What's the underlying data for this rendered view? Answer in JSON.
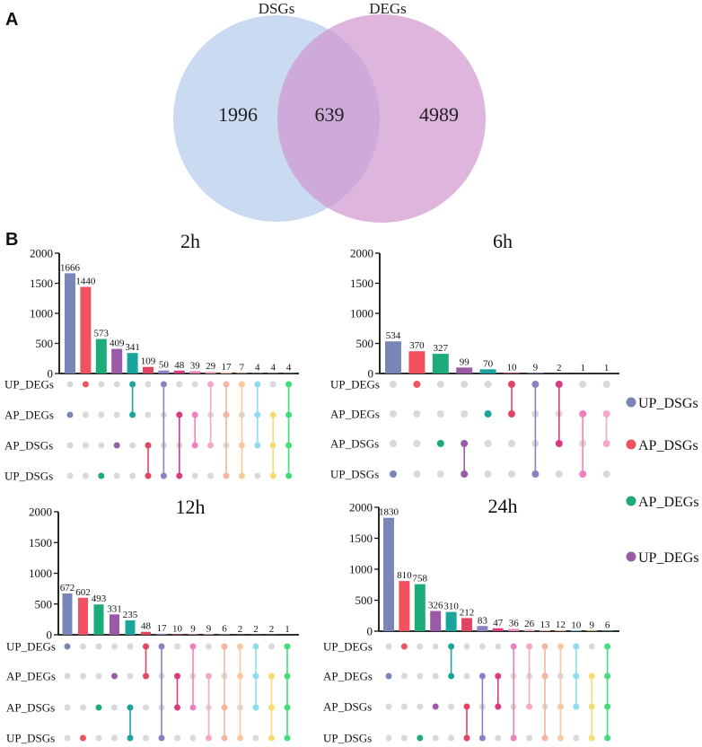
{
  "panel_labels": {
    "a": "A",
    "b": "B"
  },
  "bar_colors": [
    "#7b86b8",
    "#f25260",
    "#1dab7c",
    "#9a5aa6",
    "#1aa59c",
    "#e04563",
    "#8b80c2",
    "#d93b7f",
    "#ef80be",
    "#f5a8c6",
    "#f7b49e",
    "#f8c99c",
    "#90dcef",
    "#f5dc70",
    "#40df7c"
  ],
  "dot_inactive_color": "#d9d9d9",
  "legend": [
    {
      "label": "UP_DSGs",
      "color": "#7b86b8"
    },
    {
      "label": "AP_DSGs",
      "color": "#f25260"
    },
    {
      "label": "AP_DEGs",
      "color": "#1dab7c"
    },
    {
      "label": "UP_DEGs",
      "color": "#9a5aa6"
    }
  ],
  "chart_data": [
    {
      "type": "venn",
      "sets": [
        "DSGs",
        "DEGs"
      ],
      "counts": {
        "DSGs_only": 1996,
        "both": 639,
        "DEGs_only": 4989
      },
      "colors": [
        "#cadbf1",
        "#cf96cf"
      ]
    },
    {
      "type": "bar",
      "title": "2h",
      "sets": [
        "UP_DEGs",
        "AP_DEGs",
        "AP_DSGs",
        "UP_DSGs"
      ],
      "values": [
        1666,
        1440,
        573,
        409,
        341,
        109,
        50,
        48,
        39,
        29,
        17,
        7,
        4,
        4,
        4
      ],
      "combinations": [
        [
          1
        ],
        [
          0
        ],
        [
          3
        ],
        [
          2
        ],
        [
          0,
          1
        ],
        [
          2,
          3
        ],
        [
          0,
          3
        ],
        [
          1,
          3
        ],
        [
          1,
          2
        ],
        [
          0,
          2
        ],
        [
          0,
          1,
          3
        ],
        [
          0,
          2,
          3
        ],
        [
          0,
          1,
          2
        ],
        [
          1,
          2,
          3
        ],
        [
          0,
          1,
          2,
          3
        ]
      ],
      "ylim": [
        0,
        2000
      ],
      "yticks": [
        0,
        500,
        1000,
        1500,
        2000
      ]
    },
    {
      "type": "bar",
      "title": "6h",
      "sets": [
        "UP_DEGs",
        "AP_DEGs",
        "AP_DSGs",
        "UP_DSGs"
      ],
      "values": [
        534,
        370,
        327,
        99,
        70,
        10,
        9,
        2,
        1,
        1
      ],
      "combinations": [
        [
          3
        ],
        [
          0
        ],
        [
          2
        ],
        [
          2,
          3
        ],
        [
          1
        ],
        [
          0,
          1
        ],
        [
          0,
          3
        ],
        [
          0,
          2
        ],
        [
          1,
          3
        ],
        [
          1,
          2
        ]
      ],
      "ylim": [
        0,
        2000
      ],
      "yticks": [
        0,
        500,
        1000,
        1500,
        2000
      ]
    },
    {
      "type": "bar",
      "title": "12h",
      "sets": [
        "UP_DEGs",
        "AP_DEGs",
        "AP_DSGs",
        "UP_DSGs"
      ],
      "values": [
        672,
        602,
        493,
        331,
        235,
        48,
        17,
        10,
        9,
        9,
        6,
        2,
        2,
        2,
        1
      ],
      "combinations": [
        [
          0
        ],
        [
          3
        ],
        [
          2
        ],
        [
          1
        ],
        [
          2,
          3
        ],
        [
          0,
          1
        ],
        [
          0,
          3
        ],
        [
          1,
          2
        ],
        [
          0,
          2
        ],
        [
          1,
          3
        ],
        [
          0,
          2,
          3
        ],
        [
          0,
          1,
          3
        ],
        [
          0,
          1,
          2
        ],
        [
          1,
          2,
          3
        ],
        [
          0,
          1,
          2,
          3
        ]
      ],
      "ylim": [
        0,
        2000
      ],
      "yticks": [
        0,
        500,
        1000,
        1500,
        2000
      ]
    },
    {
      "type": "bar",
      "title": "24h",
      "sets": [
        "UP_DEGs",
        "AP_DEGs",
        "AP_DSGs",
        "UP_DSGs"
      ],
      "values": [
        1830,
        810,
        758,
        326,
        310,
        212,
        83,
        47,
        36,
        26,
        13,
        12,
        10,
        9,
        6
      ],
      "combinations": [
        [
          1
        ],
        [
          0
        ],
        [
          3
        ],
        [
          2
        ],
        [
          0,
          1
        ],
        [
          2,
          3
        ],
        [
          1,
          3
        ],
        [
          1,
          2
        ],
        [
          0,
          3
        ],
        [
          0,
          2
        ],
        [
          0,
          1,
          3
        ],
        [
          0,
          2,
          3
        ],
        [
          0,
          1,
          2
        ],
        [
          1,
          2,
          3
        ],
        [
          0,
          1,
          2,
          3
        ]
      ],
      "ylim": [
        0,
        2000
      ],
      "yticks": [
        0,
        500,
        1000,
        1500,
        2000
      ]
    }
  ]
}
